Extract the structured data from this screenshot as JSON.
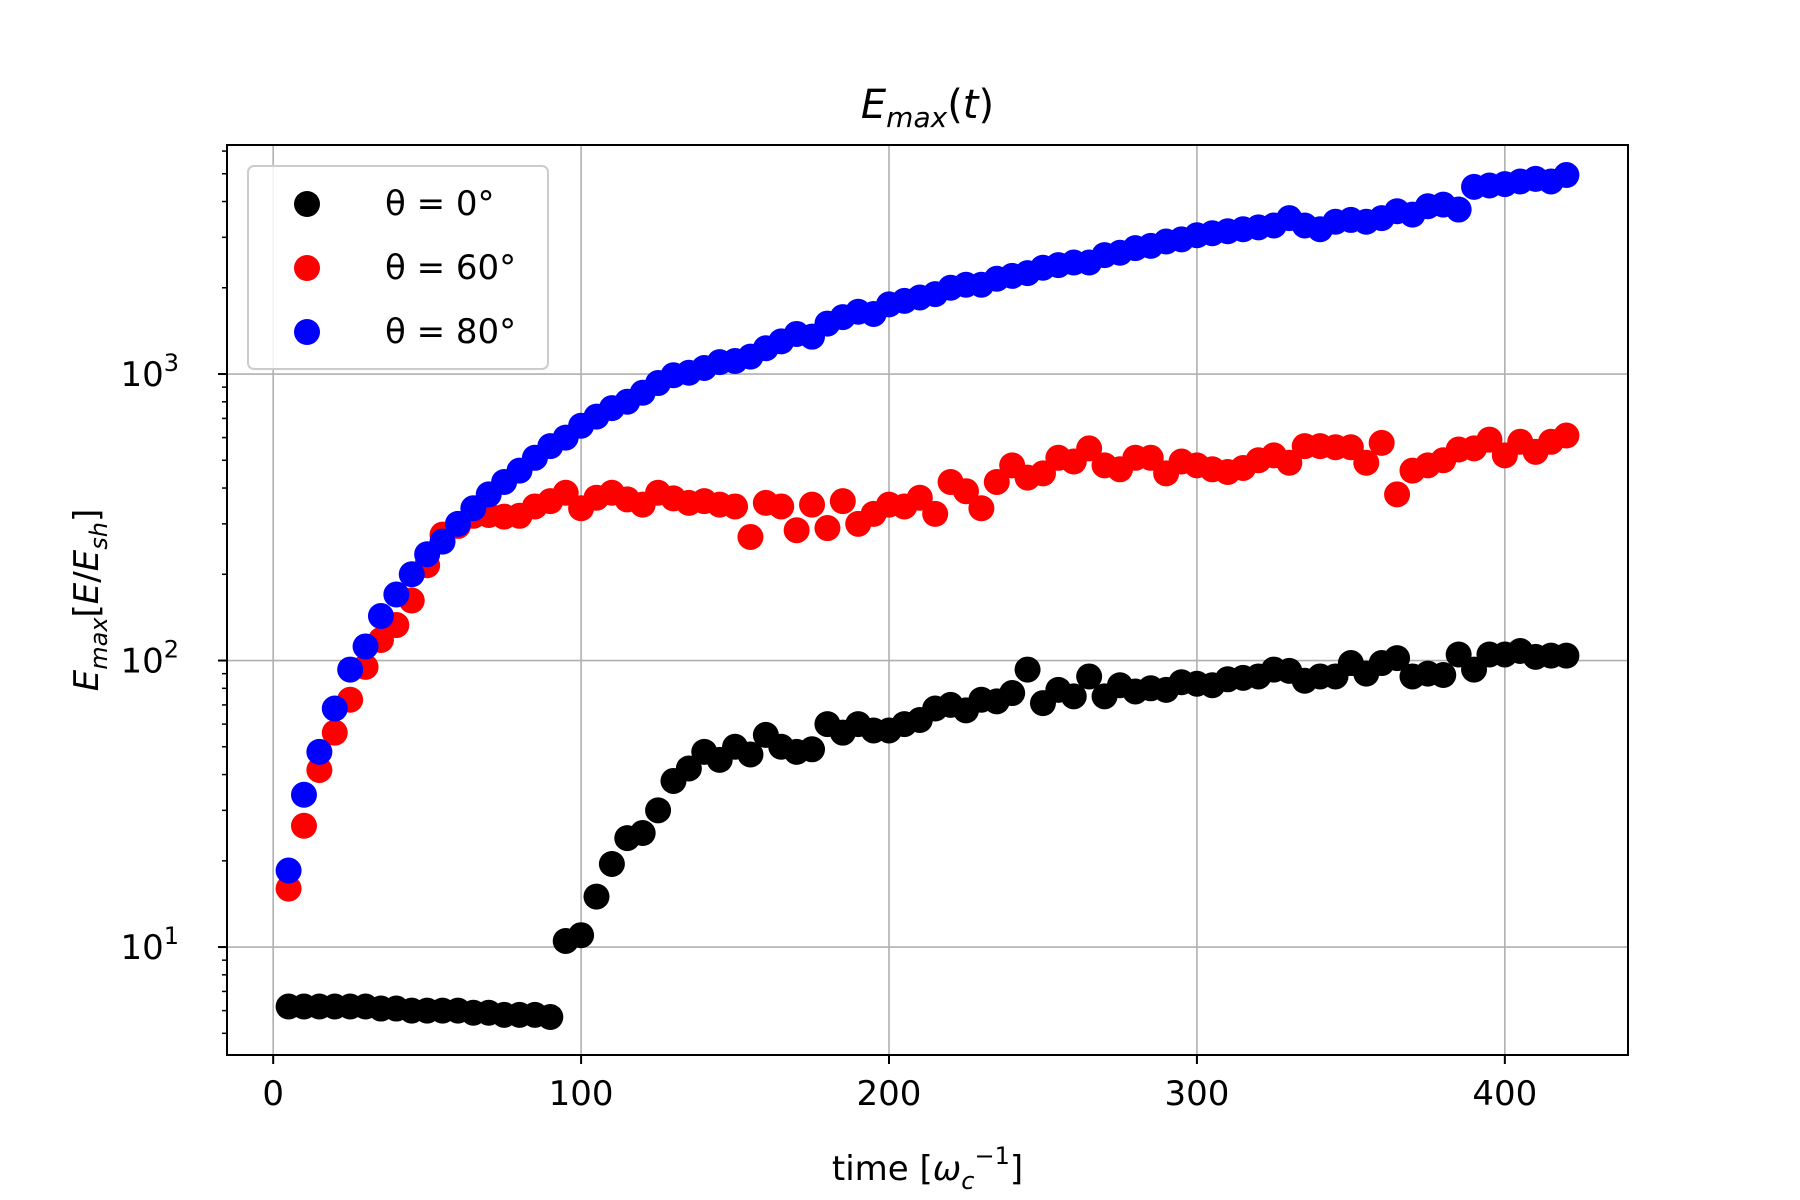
{
  "chart_data": {
    "type": "scatter",
    "title": "E_max(t)",
    "xlabel": "time [ω_c^-1]",
    "ylabel": "E_max[E/E_sh]",
    "xlim": [
      -15,
      440
    ],
    "ylim": [
      4.2,
      6300
    ],
    "yscale": "log",
    "grid": true,
    "legend_position": "top-left",
    "x_ticks": [
      {
        "value": 0,
        "label": "0"
      },
      {
        "value": 100,
        "label": "100"
      },
      {
        "value": 200,
        "label": "200"
      },
      {
        "value": 300,
        "label": "300"
      },
      {
        "value": 400,
        "label": "400"
      }
    ],
    "y_ticks": [
      {
        "value": 10,
        "base": "10",
        "exp": "1"
      },
      {
        "value": 100,
        "base": "10",
        "exp": "2"
      },
      {
        "value": 1000,
        "base": "10",
        "exp": "3"
      }
    ],
    "series": [
      {
        "name": "θ = 0°",
        "color": "#000000",
        "x": [
          5,
          10,
          15,
          20,
          25,
          30,
          35,
          40,
          45,
          50,
          55,
          60,
          65,
          70,
          75,
          80,
          85,
          90,
          95,
          100,
          105,
          110,
          115,
          120,
          125,
          130,
          135,
          140,
          145,
          150,
          155,
          160,
          165,
          170,
          175,
          180,
          185,
          190,
          195,
          200,
          205,
          210,
          215,
          220,
          225,
          230,
          235,
          240,
          245,
          250,
          255,
          260,
          265,
          270,
          275,
          280,
          285,
          290,
          295,
          300,
          305,
          310,
          315,
          320,
          325,
          330,
          335,
          340,
          345,
          350,
          355,
          360,
          365,
          370,
          375,
          380,
          385,
          390,
          395,
          400,
          405,
          410,
          415,
          420
        ],
        "y": [
          6.2,
          6.2,
          6.2,
          6.2,
          6.2,
          6.2,
          6.1,
          6.1,
          6.0,
          6.0,
          6.0,
          6.0,
          5.9,
          5.9,
          5.8,
          5.8,
          5.8,
          5.7,
          10.5,
          11.0,
          15.0,
          19.5,
          24.0,
          25.0,
          30.0,
          38.0,
          42.0,
          48.0,
          45.0,
          50.0,
          47.0,
          55.0,
          50.0,
          48.0,
          49.0,
          60.0,
          56.0,
          60.0,
          57.0,
          57.0,
          60.0,
          62.0,
          68.0,
          70.0,
          67.0,
          73.0,
          72.0,
          77.0,
          93.0,
          71.0,
          79.0,
          75.0,
          88.0,
          75.0,
          82.0,
          78.0,
          80.0,
          79.0,
          84.0,
          83.0,
          82.0,
          86.0,
          87.0,
          88.0,
          93.0,
          92.0,
          85.0,
          88.0,
          88.0,
          98.0,
          90.0,
          98.0,
          102.0,
          88.0,
          90.0,
          89.0,
          105.0,
          93.0,
          105.0,
          105.0,
          108.0,
          103.0,
          104.0,
          104.0
        ]
      },
      {
        "name": "θ = 60°",
        "color": "#ff0000",
        "x": [
          5,
          10,
          15,
          20,
          25,
          30,
          35,
          40,
          45,
          50,
          55,
          60,
          65,
          70,
          75,
          80,
          85,
          90,
          95,
          100,
          105,
          110,
          115,
          120,
          125,
          130,
          135,
          140,
          145,
          150,
          155,
          160,
          165,
          170,
          175,
          180,
          185,
          190,
          195,
          200,
          205,
          210,
          215,
          220,
          225,
          230,
          235,
          240,
          245,
          250,
          255,
          260,
          265,
          270,
          275,
          280,
          285,
          290,
          295,
          300,
          305,
          310,
          315,
          320,
          325,
          330,
          335,
          340,
          345,
          350,
          355,
          360,
          365,
          370,
          375,
          380,
          385,
          390,
          395,
          400,
          405,
          410,
          415,
          420
        ],
        "y": [
          16.0,
          26.5,
          41.5,
          56.0,
          73.0,
          95.0,
          118.0,
          133.0,
          162.0,
          215.0,
          275.0,
          295.0,
          320.0,
          322.0,
          318.0,
          320.0,
          345.0,
          360.0,
          385.0,
          340.0,
          370.0,
          385.0,
          365.0,
          350.0,
          385.0,
          368.0,
          355.0,
          360.0,
          350.0,
          345.0,
          270.0,
          355.0,
          345.0,
          285.0,
          350.0,
          290.0,
          360.0,
          300.0,
          325.0,
          350.0,
          345.0,
          370.0,
          325.0,
          420.0,
          390.0,
          340.0,
          420.0,
          480.0,
          435.0,
          450.0,
          510.0,
          495.0,
          550.0,
          480.0,
          465.0,
          510.0,
          510.0,
          450.0,
          495.0,
          480.0,
          465.0,
          455.0,
          470.0,
          500.0,
          520.0,
          490.0,
          560.0,
          560.0,
          555.0,
          555.0,
          490.0,
          575.0,
          380.0,
          460.0,
          480.0,
          500.0,
          545.0,
          550.0,
          590.0,
          520.0,
          580.0,
          535.0,
          580.0,
          610.0
        ]
      },
      {
        "name": "θ = 80°",
        "color": "#0000ff",
        "x": [
          5,
          10,
          15,
          20,
          25,
          30,
          35,
          40,
          45,
          50,
          55,
          60,
          65,
          70,
          75,
          80,
          85,
          90,
          95,
          100,
          105,
          110,
          115,
          120,
          125,
          130,
          135,
          140,
          145,
          150,
          155,
          160,
          165,
          170,
          175,
          180,
          185,
          190,
          195,
          200,
          205,
          210,
          215,
          220,
          225,
          230,
          235,
          240,
          245,
          250,
          255,
          260,
          265,
          270,
          275,
          280,
          285,
          290,
          295,
          300,
          305,
          310,
          315,
          320,
          325,
          330,
          335,
          340,
          345,
          350,
          355,
          360,
          365,
          370,
          375,
          380,
          385,
          390,
          395,
          400,
          405,
          410,
          415,
          420
        ],
        "y": [
          18.5,
          34.0,
          48.0,
          68.0,
          93.0,
          112.0,
          143.0,
          170.0,
          200.0,
          235.0,
          260.0,
          300.0,
          340.0,
          380.0,
          420.0,
          460.0,
          510.0,
          560.0,
          600.0,
          660.0,
          710.0,
          760.0,
          800.0,
          860.0,
          930.0,
          990.0,
          1010.0,
          1050.0,
          1100.0,
          1110.0,
          1150.0,
          1230.0,
          1300.0,
          1380.0,
          1350.0,
          1500.0,
          1580.0,
          1650.0,
          1620.0,
          1750.0,
          1800.0,
          1850.0,
          1900.0,
          2000.0,
          2050.0,
          2050.0,
          2150.0,
          2200.0,
          2250.0,
          2350.0,
          2400.0,
          2450.0,
          2450.0,
          2600.0,
          2650.0,
          2750.0,
          2800.0,
          2900.0,
          2950.0,
          3050.0,
          3100.0,
          3150.0,
          3200.0,
          3250.0,
          3300.0,
          3500.0,
          3300.0,
          3200.0,
          3400.0,
          3450.0,
          3400.0,
          3500.0,
          3700.0,
          3600.0,
          3850.0,
          3900.0,
          3750.0,
          4500.0,
          4550.0,
          4600.0,
          4700.0,
          4800.0,
          4700.0,
          4950.0
        ]
      }
    ]
  }
}
